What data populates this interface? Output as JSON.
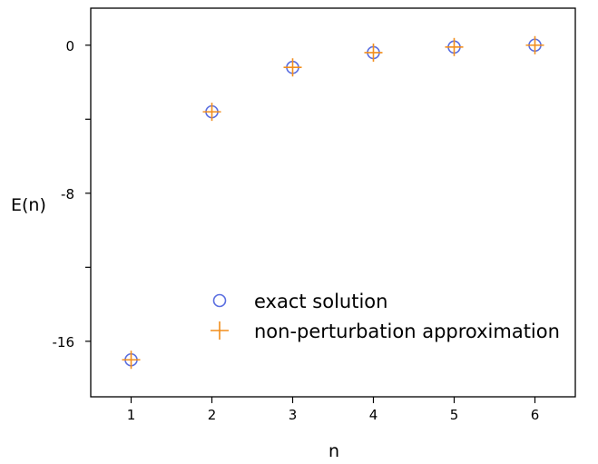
{
  "chart_data": {
    "type": "scatter",
    "xlabel": "n",
    "ylabel": "E(n)",
    "xlim": [
      0.5,
      6.5
    ],
    "ylim": [
      -19,
      2
    ],
    "x_ticks": [
      1,
      2,
      3,
      4,
      5,
      6
    ],
    "x_tick_labels": [
      "1",
      "2",
      "3",
      "4",
      "5",
      "6"
    ],
    "y_ticks": [
      -16,
      -12,
      -8,
      -4,
      0
    ],
    "y_tick_labels": [
      "-16",
      "",
      "-8",
      "",
      "0"
    ],
    "grid": false,
    "legend_position": "lower-right",
    "series": [
      {
        "name": "exact solution",
        "marker": "circle",
        "color": "#5a6ee0",
        "x": [
          1,
          2,
          3,
          4,
          5,
          6
        ],
        "y": [
          -17.0,
          -3.6,
          -1.2,
          -0.4,
          -0.1,
          0.0
        ]
      },
      {
        "name": "non-perturbation approximation",
        "marker": "plus",
        "color": "#f28e1c",
        "x": [
          1,
          2,
          3,
          4,
          5,
          6
        ],
        "y": [
          -17.0,
          -3.6,
          -1.2,
          -0.4,
          -0.1,
          0.0
        ]
      }
    ]
  }
}
